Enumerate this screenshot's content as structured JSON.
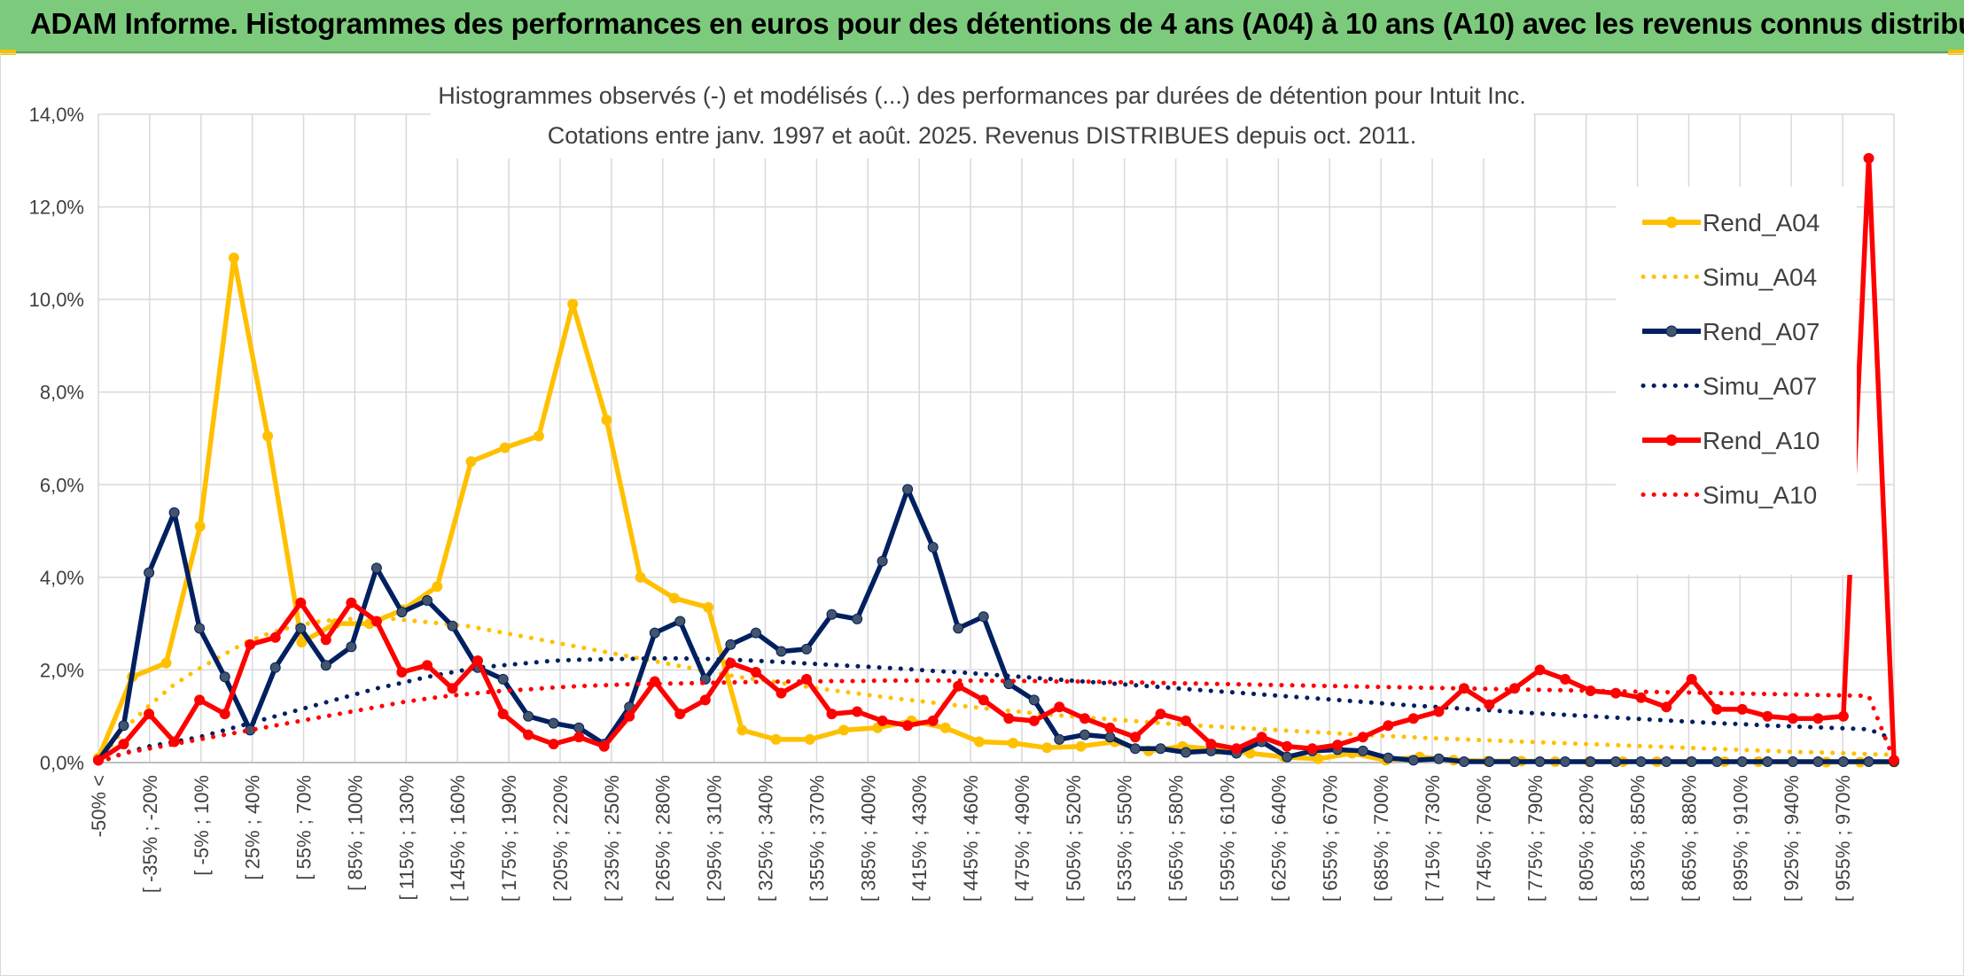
{
  "header": {
    "title": "ADAM Informe. Histogrammes des performances en euros pour des détentions de 4 ans (A04) à 10 ans (A10) avec les revenus connus distribués"
  },
  "chart_data": {
    "type": "line",
    "title": "Histogrammes observés (-) et modélisés (...) des performances par durées de détention pour Intuit Inc.",
    "subtitle": "Cotations entre janv. 1997 et août. 2025. Revenus DISTRIBUES depuis oct. 2011.",
    "ylim": [
      0,
      14
    ],
    "yticks": [
      "0,0%",
      "2,0%",
      "4,0%",
      "6,0%",
      "8,0%",
      "10,0%",
      "12,0%",
      "14,0%"
    ],
    "ytick_values": [
      0,
      2,
      4,
      6,
      8,
      10,
      12,
      14
    ],
    "grid": true,
    "legend_position": "right",
    "tick_labels": [
      "-50% <",
      "[ -35% ; -20%",
      "[ -5% ; 10%",
      "[ 25% ; 40%",
      "[ 55% ; 70%",
      "[ 85% ; 100%",
      "[ 115% ; 130%",
      "[ 145% ; 160%",
      "[ 175% ; 190%",
      "[ 205% ; 220%",
      "[ 235% ; 250%",
      "[ 265% ; 280%",
      "[ 295% ; 310%",
      "[ 325% ; 340%",
      "[ 355% ; 370%",
      "[ 385% ; 400%",
      "[ 415% ; 430%",
      "[ 445% ; 460%",
      "[ 475% ; 490%",
      "[ 505% ; 520%",
      "[ 535% ; 550%",
      "[ 565% ; 580%",
      "[ 595% ; 610%",
      "[ 625% ; 640%",
      "[ 655% ; 670%",
      "[ 685% ; 700%",
      "[ 715% ; 730%",
      "[ 745% ; 760%",
      "[ 775% ; 790%",
      "[ 805% ; 820%",
      "[ 835% ; 850%",
      "[ 865% ; 880%",
      "[ 895% ; 910%",
      "[ 925% ; 940%",
      "[ 955% ; 970%"
    ],
    "series": [
      {
        "name": "Rend_A04",
        "style": "solid",
        "color": "#ffc000",
        "values": [
          0.1,
          1.85,
          2.15,
          5.1,
          10.9,
          7.05,
          2.6,
          3.0,
          3.0,
          3.3,
          3.8,
          6.5,
          6.8,
          7.05,
          9.9,
          7.4,
          4.0,
          3.55,
          3.35,
          0.7,
          0.5,
          0.5,
          0.7,
          0.75,
          0.9,
          0.75,
          0.45,
          0.42,
          0.32,
          0.35,
          0.45,
          0.25,
          0.35,
          0.28,
          0.2,
          0.12,
          0.08,
          0.2,
          0.05,
          0.12,
          0.05,
          0.03,
          0.03,
          0.02,
          0.02,
          0.02,
          0.02,
          0.02,
          0.02,
          0.02,
          0.02,
          0.01,
          0.01,
          0.01
        ]
      },
      {
        "name": "Simu_A04",
        "style": "dotted",
        "color": "#ffc000",
        "values": [
          0.0,
          0.7,
          1.2,
          1.65,
          2.0,
          2.3,
          2.6,
          2.8,
          2.95,
          3.05,
          3.1,
          3.1,
          3.1,
          3.05,
          3.0,
          2.95,
          2.85,
          2.75,
          2.65,
          2.55,
          2.45,
          2.35,
          2.25,
          2.15,
          2.05,
          1.95,
          1.85,
          1.78,
          1.7,
          1.62,
          1.55,
          1.48,
          1.41,
          1.35,
          1.29,
          1.23,
          1.17,
          1.12,
          1.07,
          1.02,
          0.98,
          0.94,
          0.9,
          0.86,
          0.82,
          0.79,
          0.76,
          0.73,
          0.7,
          0.67,
          0.64,
          0.61,
          0.58,
          0.56,
          0.53,
          0.51,
          0.49,
          0.47,
          0.45,
          0.43,
          0.41,
          0.39,
          0.37,
          0.35,
          0.33,
          0.31,
          0.29,
          0.27,
          0.25,
          0.23,
          0.22,
          0.2,
          0.18,
          0.17
        ]
      },
      {
        "name": "Rend_A07",
        "style": "solid",
        "color": "#002060",
        "values": [
          0.05,
          0.8,
          4.1,
          5.4,
          2.9,
          1.85,
          0.7,
          2.05,
          2.9,
          2.1,
          2.5,
          4.2,
          3.25,
          3.5,
          2.95,
          2.05,
          1.8,
          1.0,
          0.85,
          0.75,
          0.4,
          1.2,
          2.8,
          3.05,
          1.8,
          2.55,
          2.8,
          2.4,
          2.45,
          3.2,
          3.1,
          4.35,
          5.9,
          4.65,
          2.9,
          3.15,
          1.7,
          1.35,
          0.5,
          0.6,
          0.55,
          0.3,
          0.3,
          0.22,
          0.25,
          0.2,
          0.45,
          0.12,
          0.25,
          0.28,
          0.25,
          0.1,
          0.05,
          0.08,
          0.02,
          0.02,
          0.02,
          0.02,
          0.02,
          0.02,
          0.02,
          0.02,
          0.02,
          0.02,
          0.02,
          0.02,
          0.02,
          0.02,
          0.02,
          0.02,
          0.02,
          0.02
        ]
      },
      {
        "name": "Simu_A07",
        "style": "dotted",
        "color": "#002060",
        "values": [
          0.0,
          0.2,
          0.35,
          0.45,
          0.55,
          0.7,
          0.85,
          1.0,
          1.15,
          1.3,
          1.45,
          1.6,
          1.72,
          1.85,
          1.95,
          2.05,
          2.1,
          2.15,
          2.2,
          2.22,
          2.23,
          2.24,
          2.25,
          2.25,
          2.24,
          2.22,
          2.2,
          2.17,
          2.14,
          2.11,
          2.08,
          2.05,
          2.02,
          1.98,
          1.95,
          1.91,
          1.87,
          1.83,
          1.79,
          1.75,
          1.71,
          1.67,
          1.63,
          1.59,
          1.55,
          1.51,
          1.47,
          1.43,
          1.39,
          1.35,
          1.31,
          1.27,
          1.23,
          1.2,
          1.16,
          1.13,
          1.09,
          1.06,
          1.03,
          1.0,
          0.97,
          0.94,
          0.91,
          0.88,
          0.85,
          0.83,
          0.8,
          0.78,
          0.76,
          0.74,
          0.72,
          0.5
        ]
      },
      {
        "name": "Rend_A10",
        "style": "solid",
        "color": "#ff0000",
        "values": [
          0.05,
          0.4,
          1.05,
          0.45,
          1.35,
          1.05,
          2.55,
          2.7,
          3.45,
          2.65,
          3.45,
          3.05,
          1.95,
          2.1,
          1.6,
          2.2,
          1.05,
          0.6,
          0.4,
          0.55,
          0.35,
          1.0,
          1.75,
          1.05,
          1.35,
          2.15,
          1.95,
          1.5,
          1.8,
          1.05,
          1.1,
          0.9,
          0.8,
          0.9,
          1.65,
          1.35,
          0.95,
          0.9,
          1.2,
          0.95,
          0.75,
          0.55,
          1.05,
          0.9,
          0.4,
          0.3,
          0.55,
          0.35,
          0.3,
          0.38,
          0.55,
          0.8,
          0.95,
          1.1,
          1.6,
          1.25,
          1.6,
          2.0,
          1.8,
          1.55,
          1.5,
          1.4,
          1.2,
          1.8,
          1.15,
          1.15,
          1.0,
          0.95,
          0.95,
          1.0,
          13.05,
          0.05
        ]
      },
      {
        "name": "Simu_A10",
        "style": "dotted",
        "color": "#ff0000",
        "values": [
          0.0,
          0.2,
          0.3,
          0.4,
          0.5,
          0.6,
          0.7,
          0.8,
          0.9,
          1.0,
          1.1,
          1.2,
          1.3,
          1.38,
          1.45,
          1.5,
          1.55,
          1.58,
          1.62,
          1.65,
          1.67,
          1.69,
          1.7,
          1.71,
          1.72,
          1.73,
          1.74,
          1.75,
          1.75,
          1.76,
          1.76,
          1.77,
          1.77,
          1.77,
          1.77,
          1.77,
          1.76,
          1.76,
          1.75,
          1.75,
          1.74,
          1.73,
          1.72,
          1.71,
          1.7,
          1.69,
          1.68,
          1.67,
          1.66,
          1.65,
          1.64,
          1.63,
          1.62,
          1.61,
          1.6,
          1.59,
          1.58,
          1.57,
          1.56,
          1.55,
          1.54,
          1.53,
          1.52,
          1.51,
          1.5,
          1.49,
          1.48,
          1.47,
          1.46,
          1.45,
          1.44,
          0.05
        ]
      }
    ]
  }
}
